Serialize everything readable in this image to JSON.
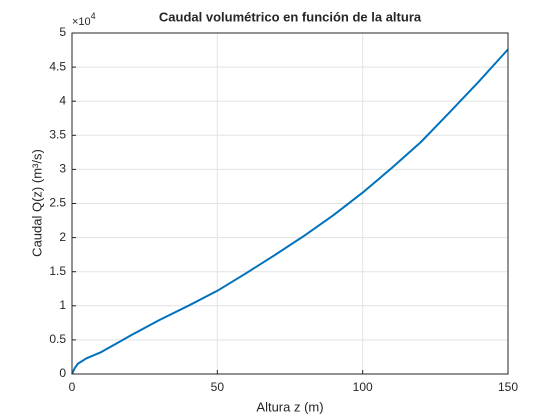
{
  "chart_data": {
    "type": "line",
    "title": "Caudal volumétrico en función de la altura",
    "xlabel": "Altura z (m)",
    "ylabel": "Caudal Q(z) (m³/s)",
    "y_exponent_base": "×10",
    "y_exponent_power": "4",
    "x": [
      0,
      1,
      2,
      5,
      10,
      15,
      20,
      30,
      40,
      50,
      60,
      70,
      80,
      90,
      100,
      110,
      120,
      130,
      140,
      150
    ],
    "series": [
      {
        "color": "#0072bd",
        "values": [
          0,
          900,
          1500,
          2300,
          3200,
          4400,
          5600,
          7900,
          10000,
          12200,
          14800,
          17500,
          20300,
          23300,
          26600,
          30200,
          34000,
          38400,
          42900,
          47600
        ]
      }
    ],
    "xlim": [
      0,
      150
    ],
    "xticks": [
      0,
      50,
      100,
      150
    ],
    "ylim": [
      0,
      50000
    ],
    "yticks": [
      {
        "value": 0,
        "label": "0"
      },
      {
        "value": 5000,
        "label": "0.5"
      },
      {
        "value": 10000,
        "label": "1"
      },
      {
        "value": 15000,
        "label": "1.5"
      },
      {
        "value": 20000,
        "label": "2"
      },
      {
        "value": 25000,
        "label": "2.5"
      },
      {
        "value": 30000,
        "label": "3"
      },
      {
        "value": 35000,
        "label": "3.5"
      },
      {
        "value": 40000,
        "label": "4"
      },
      {
        "value": 45000,
        "label": "4.5"
      },
      {
        "value": 50000,
        "label": "5"
      }
    ],
    "grid": true
  }
}
